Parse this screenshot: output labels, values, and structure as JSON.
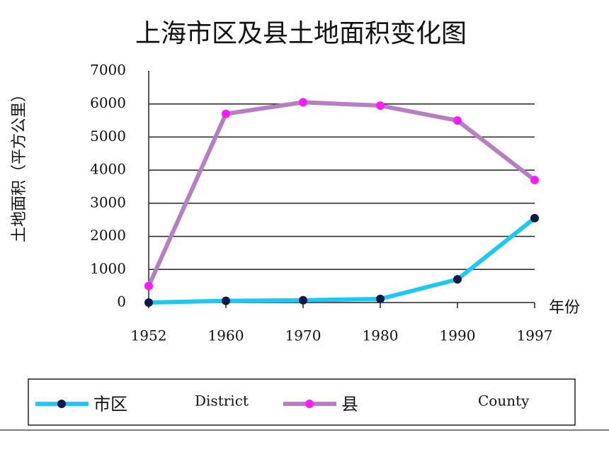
{
  "chart_data": {
    "type": "line",
    "title": "上海市区及县土地面积变化图",
    "y_label": "土地面积（平方公里）",
    "x_label": "年份",
    "categories": [
      "1952",
      "1960",
      "1970",
      "1980",
      "1990",
      "1997"
    ],
    "series": [
      {
        "name": "市区",
        "name_en": "District",
        "color": "#1ec8f2",
        "marker_color": "#0a1a4a",
        "values": [
          0,
          50,
          70,
          110,
          700,
          2550
        ]
      },
      {
        "name": "县",
        "name_en": "County",
        "color": "#b57fc2",
        "marker_color": "#ff1aff",
        "values": [
          500,
          5700,
          6050,
          5950,
          5500,
          3700
        ]
      }
    ],
    "ylim": [
      0,
      7000
    ],
    "yticks": [
      0,
      1000,
      2000,
      3000,
      4000,
      5000,
      6000,
      7000
    ],
    "grid": true,
    "legend": "bottom"
  }
}
